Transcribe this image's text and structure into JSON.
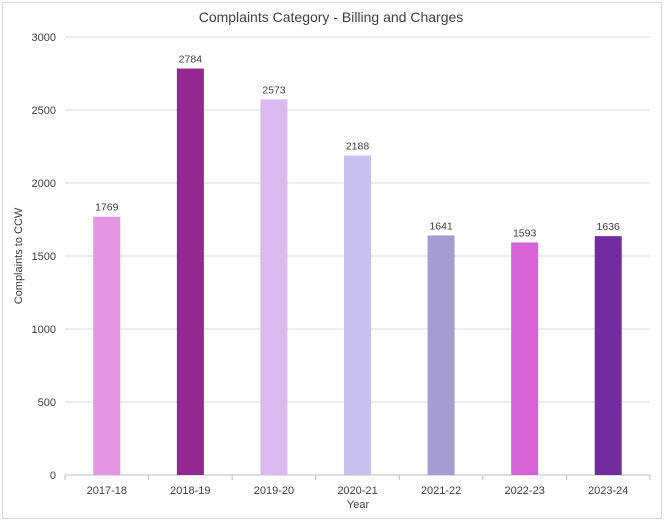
{
  "chart_data": {
    "type": "bar",
    "title": "Complaints Category - Billing and Charges",
    "xlabel": "Year",
    "ylabel": "Complaints to CCW",
    "categories": [
      "2017-18",
      "2018-19",
      "2019-20",
      "2020-21",
      "2021-22",
      "2022-23",
      "2023-24"
    ],
    "values": [
      1769,
      2784,
      2573,
      2188,
      1641,
      1593,
      1636
    ],
    "ylim": [
      0,
      3000
    ],
    "yticks": [
      0,
      500,
      1000,
      1500,
      2000,
      2500,
      3000
    ],
    "grid": true,
    "legend": "none",
    "bar_colors": [
      "#e496e2",
      "#922890",
      "#dbbaf0",
      "#c9bff1",
      "#a49dd3",
      "#d763d6",
      "#712d9f"
    ]
  }
}
